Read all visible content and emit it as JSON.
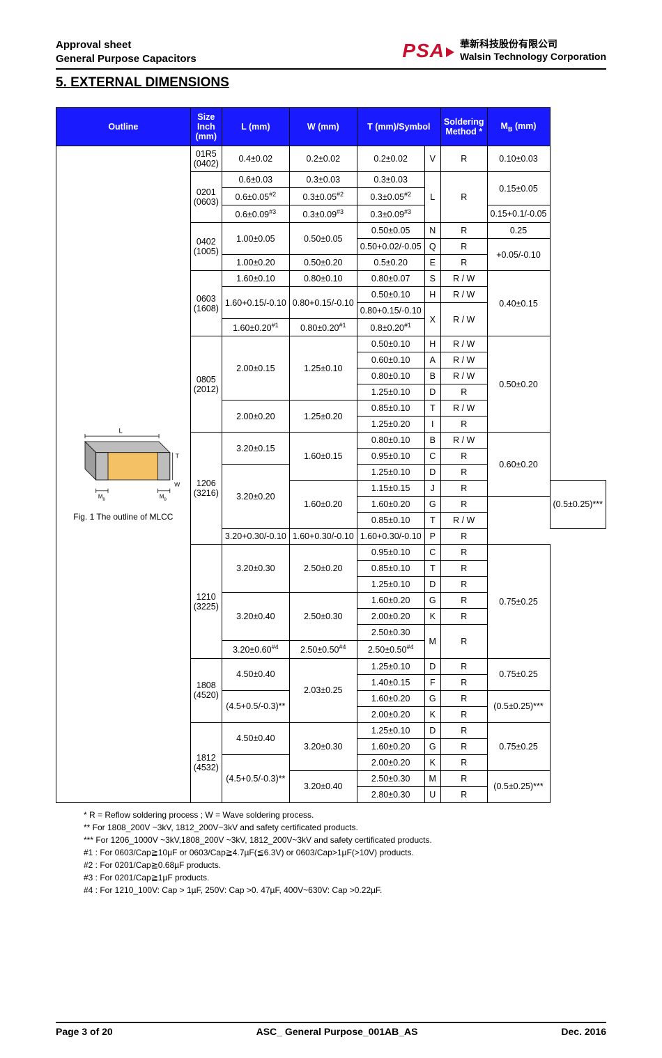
{
  "header": {
    "line1": "Approval sheet",
    "line2": "General Purpose Capacitors",
    "logo_text": "PSA",
    "corp_cn": "華新科技股份有限公司",
    "corp_en": "Walsin Technology Corporation"
  },
  "section_title": "5. EXTERNAL DIMENSIONS",
  "columns": {
    "outline": "Outline",
    "size": "Size\nInch (mm)",
    "l": "L (mm)",
    "w": "W (mm)",
    "t": "T (mm)/Symbol",
    "sold": "Soldering\nMethod *",
    "mb": "M",
    "mb_sub": "B",
    "mb_tail": " (mm)"
  },
  "fig": {
    "l": "L",
    "t": "T",
    "w": "W",
    "mb": "M",
    "mb_sub": "B",
    "caption": "Fig. 1 The outline of MLCC"
  },
  "sizes": [
    {
      "size": "01R5 (0402)",
      "rows": [
        {
          "l": "0.4±0.02",
          "w": "0.2±0.02",
          "t": "0.2±0.02",
          "sym": "V",
          "sold": "R",
          "mb": "0.10±0.03"
        }
      ]
    },
    {
      "size": "0201 (0603)",
      "rows": [
        {
          "l": "0.6±0.03",
          "w": "0.3±0.03",
          "t": "0.3±0.03",
          "sym_rs": 3,
          "sym": "L",
          "sold_rs": 3,
          "sold": "R",
          "mb": "0.15±0.05",
          "mb_rs": 2
        },
        {
          "l": "0.6±0.05",
          "l_sup": "#2",
          "w": "0.3±0.05",
          "w_sup": "#2",
          "t": "0.3±0.05",
          "t_sup": "#2"
        },
        {
          "l": "0.6±0.09",
          "l_sup": "#3",
          "w": "0.3±0.09",
          "w_sup": "#3",
          "t": "0.3±0.09",
          "t_sup": "#3",
          "mb": "0.15+0.1/-0.05"
        }
      ]
    },
    {
      "size": "0402 (1005)",
      "rows": [
        {
          "l": "1.00±0.05",
          "l_rs": 2,
          "w": "0.50±0.05",
          "w_rs": 2,
          "t": "0.50±0.05",
          "sym": "N",
          "sold": "R",
          "mb": "0.25"
        },
        {
          "t": "0.50+0.02/-0.05",
          "sym": "Q",
          "sold": "R",
          "mb": "+0.05/-0.10",
          "mb_rs": 2
        },
        {
          "l": "1.00±0.20",
          "w": "0.50±0.20",
          "t": "0.5±0.20",
          "sym": "E",
          "sold": "R"
        }
      ]
    },
    {
      "size": "0603 (1608)",
      "rows": [
        {
          "l": "1.60±0.10",
          "w": "0.80±0.10",
          "t": "0.80±0.07",
          "sym": "S",
          "sold": "R / W",
          "mb": "0.40±0.15",
          "mb_rs": 4
        },
        {
          "l": "1.60+0.15/-0.10",
          "l_rs": 2,
          "w": "0.80+0.15/-0.10",
          "w_rs": 2,
          "t": "0.50±0.10",
          "sym": "H",
          "sold": "R / W"
        },
        {
          "t": "0.80+0.15/-0.10",
          "sym": "X",
          "sym_rs": 2,
          "sold": "R / W",
          "sold_rs": 2
        },
        {
          "l": "1.60±0.20",
          "l_sup": "#1",
          "w": "0.80±0.20",
          "w_sup": "#1",
          "t": "0.8±0.20",
          "t_sup": "#1"
        }
      ]
    },
    {
      "size": "0805 (2012)",
      "rows": [
        {
          "l": "2.00±0.15",
          "l_rs": 4,
          "w": "1.25±0.10",
          "w_rs": 4,
          "t": "0.50±0.10",
          "sym": "H",
          "sold": "R / W",
          "mb": "0.50±0.20",
          "mb_rs": 6
        },
        {
          "t": "0.60±0.10",
          "sym": "A",
          "sold": "R / W"
        },
        {
          "t": "0.80±0.10",
          "sym": "B",
          "sold": "R / W"
        },
        {
          "t": "1.25±0.10",
          "sym": "D",
          "sold": "R"
        },
        {
          "l": "2.00±0.20",
          "l_rs": 2,
          "w": "1.25±0.20",
          "w_rs": 2,
          "t": "0.85±0.10",
          "sym": "T",
          "sold": "R / W"
        },
        {
          "t": "1.25±0.20",
          "sym": "I",
          "sold": "R"
        }
      ]
    },
    {
      "size": "1206 (3216)",
      "rows": [
        {
          "l": "3.20±0.15",
          "l_rs": 2,
          "w": "1.60±0.15",
          "w_rs": 3,
          "t": "0.80±0.10",
          "sym": "B",
          "sold": "R / W",
          "mb": "0.60±0.20",
          "mb_rs": 4
        },
        {
          "t": "0.95±0.10",
          "sym": "C",
          "sold": "R"
        },
        {
          "l": "3.20±0.20",
          "l_rs": 4,
          "t": "1.25±0.10",
          "sym": "D",
          "sold": "R"
        },
        {
          "w": "1.60±0.20",
          "w_rs": 3,
          "t": "1.15±0.15",
          "sym": "J",
          "sold": "R",
          "mb": "(0.5±0.25)***",
          "mb_rs": 3
        },
        {
          "t": "1.60±0.20",
          "sym": "G",
          "sold": "R"
        },
        {
          "t": "0.85±0.10",
          "sym": "T",
          "sold": "R / W"
        },
        {
          "l": "3.20+0.30/-0.10",
          "w": "1.60+0.30/-0.10",
          "t": "1.60+0.30/-0.10",
          "sym": "P",
          "sold": "R"
        }
      ]
    },
    {
      "size": "1210 (3225)",
      "rows": [
        {
          "l": "3.20±0.30",
          "l_rs": 3,
          "w": "2.50±0.20",
          "w_rs": 3,
          "t": "0.95±0.10",
          "sym": "C",
          "sold": "R",
          "mb": "0.75±0.25",
          "mb_rs": 7
        },
        {
          "t": "0.85±0.10",
          "sym": "T",
          "sold": "R"
        },
        {
          "t": "1.25±0.10",
          "sym": "D",
          "sold": "R"
        },
        {
          "l": "3.20±0.40",
          "l_rs": 3,
          "w": "2.50±0.30",
          "w_rs": 3,
          "t": "1.60±0.20",
          "sym": "G",
          "sold": "R"
        },
        {
          "t": "2.00±0.20",
          "sym": "K",
          "sold": "R"
        },
        {
          "t": "2.50±0.30",
          "sym": "M",
          "sym_rs": 2,
          "sold": "R",
          "sold_rs": 2
        },
        {
          "l": "3.20±0.60",
          "l_sup": "#4",
          "w": "2.50±0.50",
          "w_sup": "#4",
          "t": "2.50±0.50",
          "t_sup": "#4"
        }
      ]
    },
    {
      "size": "1808 (4520)",
      "rows": [
        {
          "l": "4.50±0.40",
          "l_rs": 2,
          "w": "2.03±0.25",
          "w_rs": 4,
          "t": "1.25±0.10",
          "sym": "D",
          "sold": "R",
          "mb": "0.75±0.25",
          "mb_rs": 2
        },
        {
          "t": "1.40±0.15",
          "sym": "F",
          "sold": "R"
        },
        {
          "l": "(4.5+0.5/-0.3)**",
          "l_rs": 2,
          "t": "1.60±0.20",
          "sym": "G",
          "sold": "R",
          "mb": "(0.5±0.25)***",
          "mb_rs": 2
        },
        {
          "t": "2.00±0.20",
          "sym": "K",
          "sold": "R"
        }
      ]
    },
    {
      "size": "1812 (4532)",
      "rows": [
        {
          "l": "4.50±0.40",
          "l_rs": 2,
          "w": "3.20±0.30",
          "w_rs": 3,
          "t": "1.25±0.10",
          "sym": "D",
          "sold": "R",
          "mb": "0.75±0.25",
          "mb_rs": 3
        },
        {
          "t": "1.60±0.20",
          "sym": "G",
          "sold": "R"
        },
        {
          "l": "(4.5+0.5/-0.3)**",
          "l_rs": 3,
          "t": "2.00±0.20",
          "sym": "K",
          "sold": "R"
        },
        {
          "w": "3.20±0.40",
          "w_rs": 2,
          "t": "2.50±0.30",
          "sym": "M",
          "sold": "R",
          "mb": "(0.5±0.25)***",
          "mb_rs": 2
        },
        {
          "t": "2.80±0.30",
          "sym": "U",
          "sold": "R"
        }
      ]
    }
  ],
  "notes": [
    "* R = Reflow soldering process ; W = Wave soldering process.",
    "** For 1808_200V ~3kV, 1812_200V~3kV and safety certificated products.",
    "*** For 1206_1000V ~3kV,1808_200V ~3kV, 1812_200V~3kV and safety certificated products.",
    "#1 : For 0603/Cap≧10µF or 0603/Cap≧4.7µF(≦6.3V) or 0603/Cap>1µF(>10V) products.",
    "#2 : For 0201/Cap≧0.68µF products.",
    "#3 : For 0201/Cap≧1µF products.",
    "#4 : For 1210_100V: Cap > 1µF, 250V: Cap >0. 47µF, 400V~630V: Cap >0.22µF."
  ],
  "footer": {
    "page": "Page 3 of 20",
    "title": "ASC_ General Purpose_001AB_AS",
    "date": "Dec. 2016"
  }
}
